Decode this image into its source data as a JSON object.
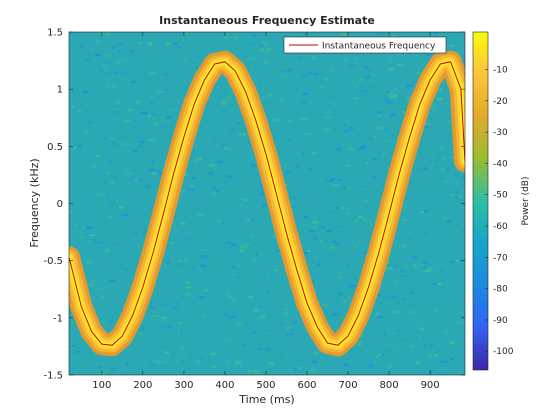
{
  "chart_data": {
    "type": "heatmap",
    "title": "Instantaneous Frequency Estimate",
    "xlabel": "Time (ms)",
    "ylabel": "Frequency (kHz)",
    "xlim": [
      20,
      985
    ],
    "ylim": [
      -1.5,
      1.5
    ],
    "x_ticks": [
      100,
      200,
      300,
      400,
      500,
      600,
      700,
      800,
      900
    ],
    "y_ticks": [
      -1.5,
      -1,
      -0.5,
      0,
      0.5,
      1,
      1.5
    ],
    "colorbar": {
      "label": "Power (dB)",
      "range": [
        -106,
        2
      ],
      "ticks": [
        -10,
        -20,
        -30,
        -40,
        -50,
        -60,
        -70,
        -80,
        -90,
        -100
      ]
    },
    "legend": {
      "position": "top-right",
      "entries": [
        "Instantaneous Frequency"
      ]
    },
    "series": [
      {
        "name": "Instantaneous Frequency",
        "color": "#cc0000",
        "x": [
          20,
          50,
          75,
          100,
          125,
          150,
          175,
          200,
          225,
          250,
          275,
          300,
          325,
          350,
          375,
          400,
          425,
          450,
          475,
          500,
          525,
          550,
          575,
          600,
          625,
          650,
          675,
          700,
          725,
          750,
          775,
          800,
          825,
          850,
          875,
          900,
          925,
          950,
          975,
          985
        ],
        "y": [
          -0.47,
          -0.9,
          -1.12,
          -1.23,
          -1.24,
          -1.16,
          -0.98,
          -0.73,
          -0.43,
          -0.09,
          0.26,
          0.58,
          0.87,
          1.08,
          1.22,
          1.24,
          1.16,
          0.98,
          0.73,
          0.43,
          0.09,
          -0.26,
          -0.58,
          -0.87,
          -1.08,
          -1.22,
          -1.24,
          -1.16,
          -0.98,
          -0.73,
          -0.43,
          -0.09,
          0.26,
          0.58,
          0.87,
          1.08,
          1.22,
          1.24,
          1.0,
          0.37
        ]
      }
    ]
  },
  "colors": {
    "background_power": "#2aa9b4",
    "ridge_core": "#fde725",
    "ridge_edge": "#f5b02f",
    "line": "#cc0000"
  }
}
